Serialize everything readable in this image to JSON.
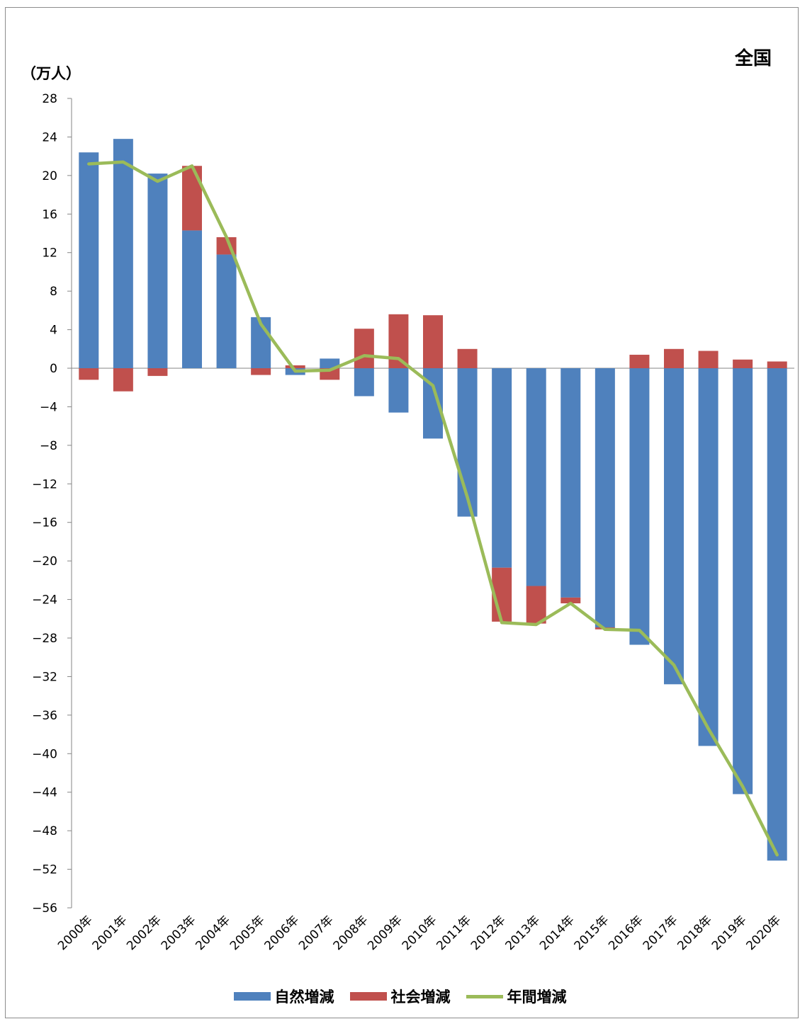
{
  "chart_data": {
    "type": "bar",
    "stacked": true,
    "title": "全国",
    "ylabel": "（万人）",
    "ylim": [
      -56,
      28
    ],
    "yticks": [
      28,
      24,
      20,
      16,
      12,
      8,
      4,
      0,
      -4,
      -8,
      -12,
      -16,
      -20,
      -24,
      -28,
      -32,
      -36,
      -40,
      -44,
      -48,
      -52,
      -56
    ],
    "ytick_labels": [
      "28",
      "24",
      "20",
      "16",
      "12",
      "8",
      "4",
      "0",
      "−4",
      "−8",
      "−12",
      "−16",
      "−20",
      "−24",
      "−28",
      "−32",
      "−36",
      "−40",
      "−44",
      "−48",
      "−52",
      "−56"
    ],
    "categories": [
      "2000年",
      "2001年",
      "2002年",
      "2003年",
      "2004年",
      "2005年",
      "2006年",
      "2007年",
      "2008年",
      "2009年",
      "2010年",
      "2011年",
      "2012年",
      "2013年",
      "2014年",
      "2015年",
      "2016年",
      "2017年",
      "2018年",
      "2019年",
      "2020年"
    ],
    "series": [
      {
        "name": "自然増減",
        "type": "bar",
        "color": "#4f81bd",
        "values": [
          22.4,
          23.8,
          20.2,
          14.3,
          11.8,
          5.3,
          -0.7,
          1.0,
          -2.9,
          -4.6,
          -7.3,
          -15.4,
          -20.7,
          -22.6,
          -23.8,
          -26.9,
          -28.7,
          -32.8,
          -39.2,
          -44.2,
          -51.1
        ]
      },
      {
        "name": "社会増減",
        "type": "bar",
        "color": "#c0504d",
        "values": [
          -1.2,
          -2.4,
          -0.8,
          6.7,
          1.8,
          -0.7,
          0.3,
          -1.2,
          4.1,
          5.6,
          5.5,
          2.0,
          -5.6,
          -3.9,
          -0.6,
          -0.2,
          1.4,
          2.0,
          1.8,
          0.9,
          0.7
        ]
      },
      {
        "name": "年間増減",
        "type": "line",
        "color": "#9bbb59",
        "values": [
          21.2,
          21.4,
          19.4,
          21.0,
          13.6,
          4.6,
          -0.3,
          -0.2,
          1.3,
          1.0,
          -1.8,
          -13.4,
          -26.4,
          -26.6,
          -24.4,
          -27.1,
          -27.2,
          -30.8,
          -37.4,
          -43.4,
          -50.5
        ]
      }
    ]
  }
}
